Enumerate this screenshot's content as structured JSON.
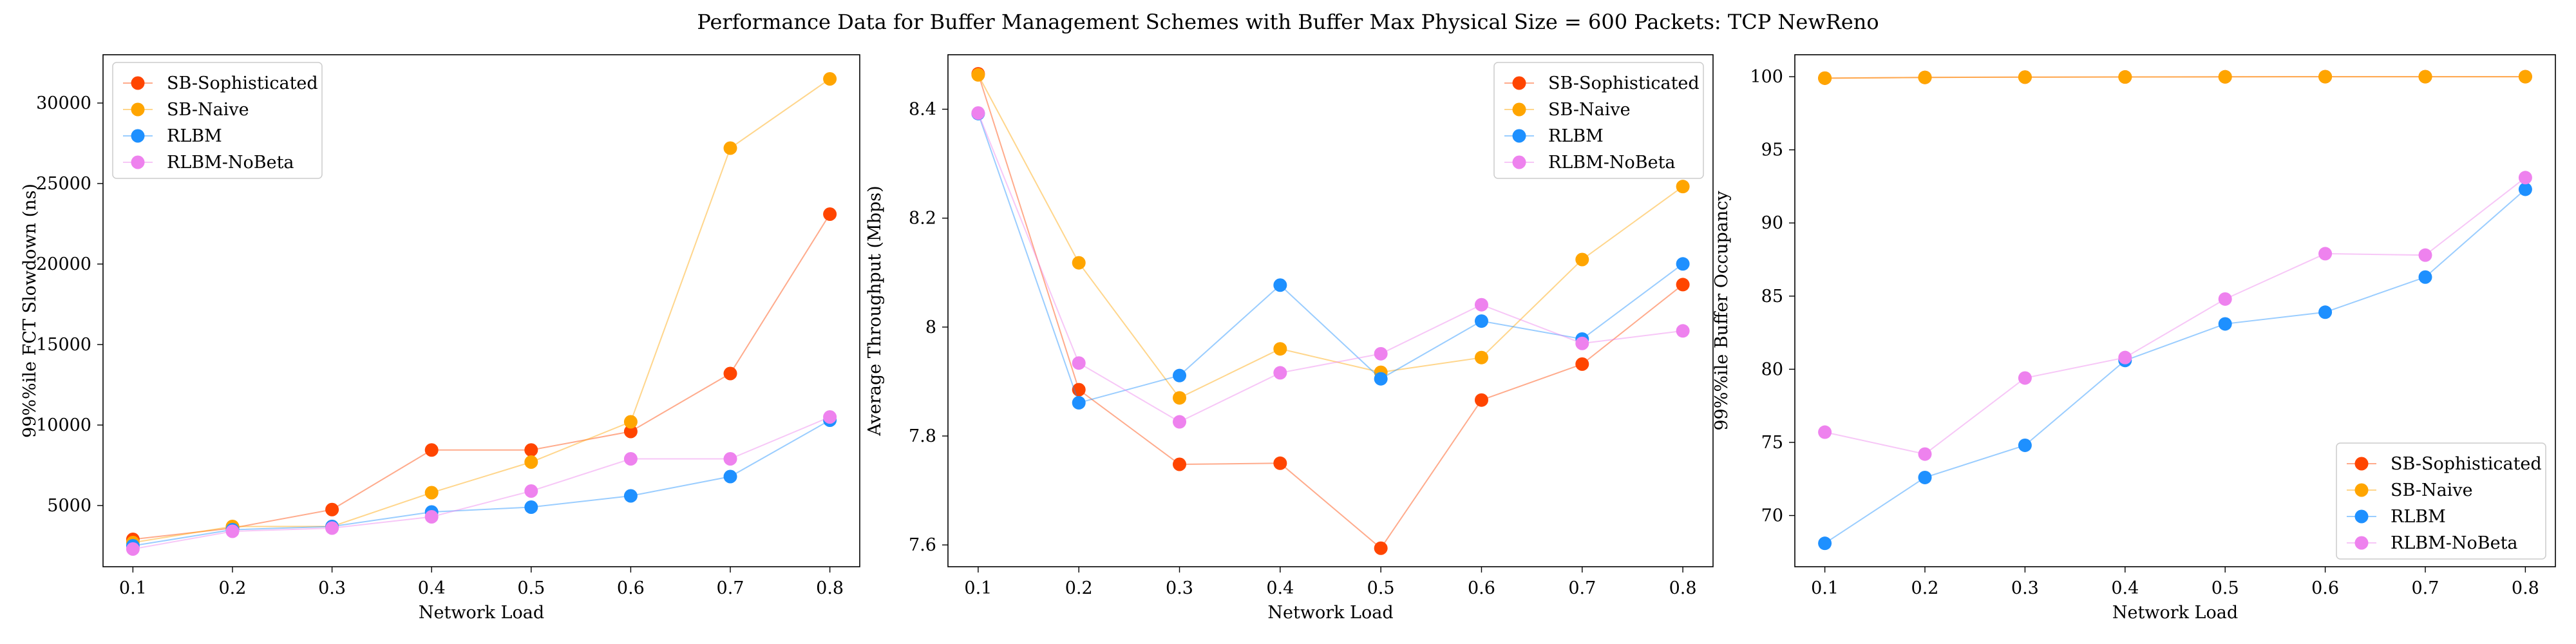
{
  "figure": {
    "title": "Performance Data for Buffer Management Schemes with Buffer Max Physical Size = 600 Packets: TCP NewReno"
  },
  "series_colors": {
    "SB-Sophisticated": "#ff4500",
    "SB-Naive": "#ffa500",
    "RLBM": "#1e90ff",
    "RLBM-NoBeta": "#ee82ee"
  },
  "chart_data": [
    {
      "type": "line",
      "xlabel": "Network Load",
      "ylabel": "99%%ile FCT Slowdown (ns)",
      "x": [
        0.1,
        0.2,
        0.3,
        0.4,
        0.5,
        0.6,
        0.7,
        0.8
      ],
      "xlim": [
        0.07,
        0.83
      ],
      "ylim": [
        1200,
        33000
      ],
      "xticks": [
        "0.1",
        "0.2",
        "0.3",
        "0.4",
        "0.5",
        "0.6",
        "0.7",
        "0.8"
      ],
      "yticks": [
        5000,
        10000,
        15000,
        20000,
        25000,
        30000
      ],
      "legend": "top-left",
      "grid": false,
      "series": [
        {
          "name": "SB-Sophisticated",
          "values": [
            2900,
            3600,
            4750,
            8450,
            8450,
            9600,
            13200,
            23100
          ]
        },
        {
          "name": "SB-Naive",
          "values": [
            2700,
            3700,
            3700,
            5800,
            7700,
            10200,
            27200,
            31500
          ]
        },
        {
          "name": "RLBM",
          "values": [
            2500,
            3500,
            3700,
            4600,
            4900,
            5600,
            6800,
            10300
          ]
        },
        {
          "name": "RLBM-NoBeta",
          "values": [
            2300,
            3400,
            3600,
            4300,
            5900,
            7900,
            7900,
            10500
          ]
        }
      ]
    },
    {
      "type": "line",
      "xlabel": "Network Load",
      "ylabel": "Average Throughput (Mbps)",
      "x": [
        0.1,
        0.2,
        0.3,
        0.4,
        0.5,
        0.6,
        0.7,
        0.8
      ],
      "xlim": [
        0.07,
        0.83
      ],
      "ylim": [
        7.56,
        8.5
      ],
      "xticks": [
        "0.1",
        "0.2",
        "0.3",
        "0.4",
        "0.5",
        "0.6",
        "0.7",
        "0.8"
      ],
      "yticks": [
        7.6,
        7.8,
        8.0,
        8.2,
        8.4
      ],
      "legend": "top-right",
      "grid": false,
      "series": [
        {
          "name": "SB-Sophisticated",
          "values": [
            8.465,
            7.885,
            7.748,
            7.75,
            7.594,
            7.866,
            7.932,
            8.078
          ]
        },
        {
          "name": "SB-Naive",
          "values": [
            8.463,
            8.118,
            7.87,
            7.96,
            7.917,
            7.944,
            8.124,
            8.258
          ]
        },
        {
          "name": "RLBM",
          "values": [
            8.392,
            7.861,
            7.911,
            8.077,
            7.905,
            8.011,
            7.978,
            8.116
          ]
        },
        {
          "name": "RLBM-NoBeta",
          "values": [
            8.393,
            7.934,
            7.826,
            7.916,
            7.951,
            8.041,
            7.97,
            7.993
          ]
        }
      ]
    },
    {
      "type": "line",
      "xlabel": "Network Load",
      "ylabel": "99%%ile Buffer Occupancy",
      "x": [
        0.1,
        0.2,
        0.3,
        0.4,
        0.5,
        0.6,
        0.7,
        0.8
      ],
      "xlim": [
        0.07,
        0.83
      ],
      "ylim": [
        66.5,
        101.5
      ],
      "xticks": [
        "0.1",
        "0.2",
        "0.3",
        "0.4",
        "0.5",
        "0.6",
        "0.7",
        "0.8"
      ],
      "yticks": [
        70,
        75,
        80,
        85,
        90,
        95,
        100
      ],
      "legend": "bottom-right",
      "grid": false,
      "series": [
        {
          "name": "SB-Sophisticated",
          "values": [
            99.9,
            99.95,
            99.97,
            99.98,
            99.99,
            100.0,
            100.0,
            100.0
          ]
        },
        {
          "name": "SB-Naive",
          "values": [
            99.9,
            99.95,
            99.97,
            99.98,
            99.99,
            100.0,
            100.0,
            100.0
          ]
        },
        {
          "name": "RLBM",
          "values": [
            68.1,
            72.6,
            74.8,
            80.6,
            83.1,
            83.9,
            86.3,
            92.3
          ]
        },
        {
          "name": "RLBM-NoBeta",
          "values": [
            75.7,
            74.2,
            79.4,
            80.8,
            84.8,
            87.9,
            87.8,
            93.1
          ]
        }
      ]
    }
  ]
}
